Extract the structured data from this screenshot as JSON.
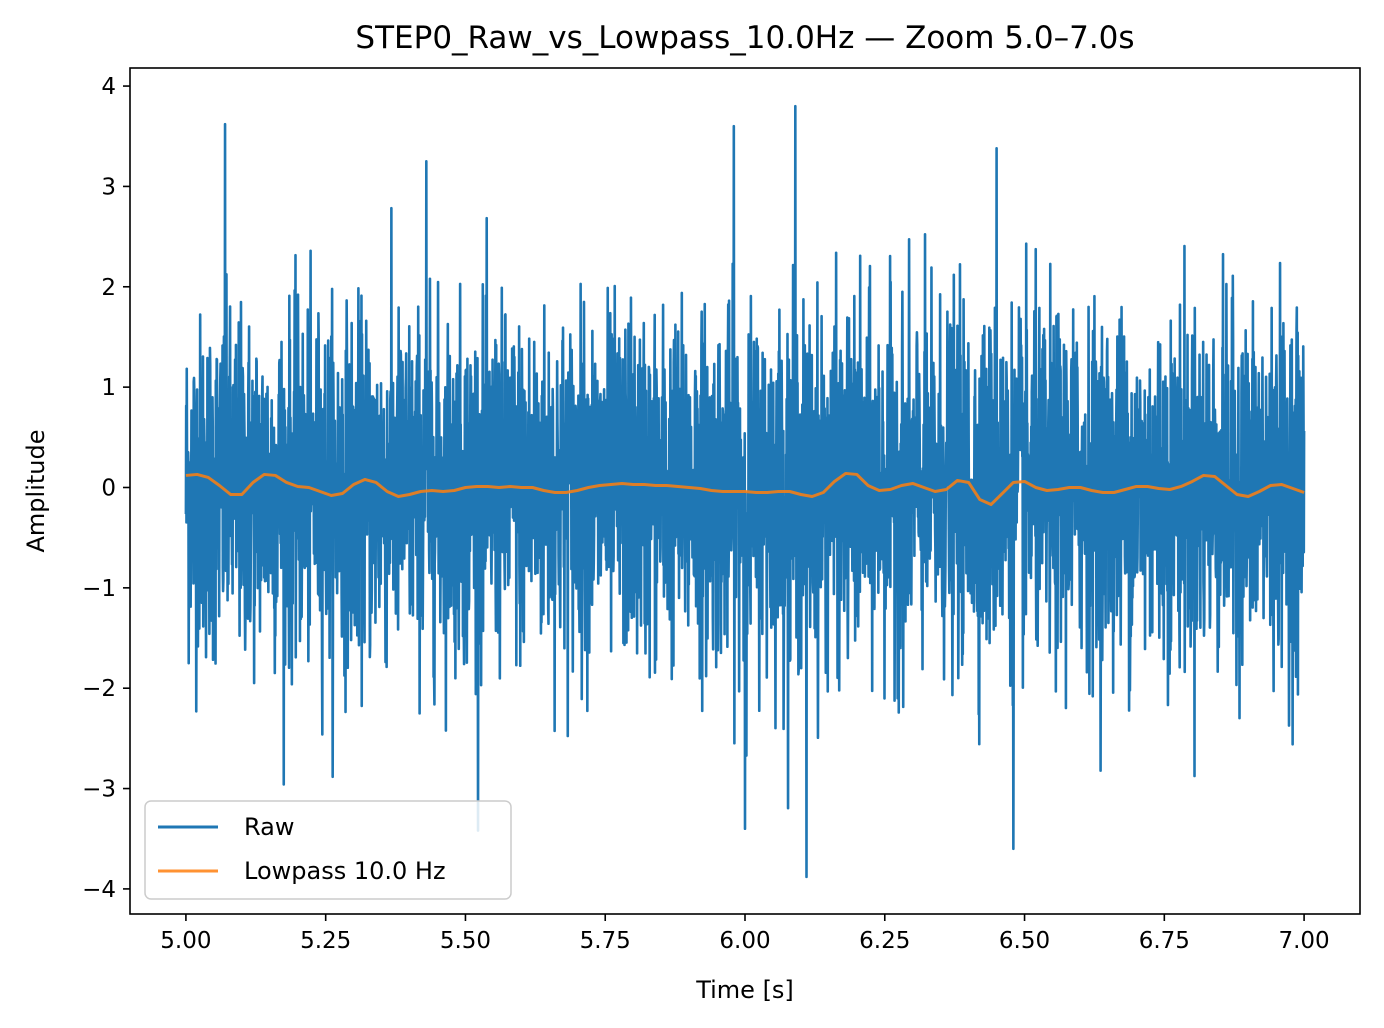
{
  "chart_data": {
    "type": "line",
    "title": "STEP0_Raw_vs_Lowpass_10.0Hz — Zoom 5.0–7.0s",
    "xlabel": "Time [s]",
    "ylabel": "Amplitude",
    "xlim": [
      4.9,
      7.1
    ],
    "ylim": [
      -4.25,
      4.18
    ],
    "grid": false,
    "legend_position": "lower-left",
    "xticks": [
      5.0,
      5.25,
      5.5,
      5.75,
      6.0,
      6.25,
      6.5,
      6.75,
      7.0
    ],
    "xtick_labels": [
      "5.00",
      "5.25",
      "5.50",
      "5.75",
      "6.00",
      "6.25",
      "6.50",
      "6.75",
      "7.00"
    ],
    "yticks": [
      -4,
      -3,
      -2,
      -1,
      0,
      1,
      2,
      3,
      4
    ],
    "ytick_labels": [
      "−4",
      "−3",
      "−2",
      "−1",
      "0",
      "1",
      "2",
      "3",
      "4"
    ],
    "series": [
      {
        "name": "Raw",
        "color": "#1f77b4",
        "x_range": [
          5.0,
          7.0
        ],
        "description_stats": {
          "approx_std": 0.85,
          "max": 3.8,
          "min": -3.88
        },
        "peaks": [
          {
            "x": 5.07,
            "y": 3.62
          },
          {
            "x": 6.09,
            "y": 3.8
          },
          {
            "x": 6.11,
            "y": -3.88
          },
          {
            "x": 6.0,
            "y": -3.4
          },
          {
            "x": 6.48,
            "y": -3.6
          },
          {
            "x": 6.45,
            "y": 3.38
          },
          {
            "x": 5.43,
            "y": 3.25
          },
          {
            "x": 5.98,
            "y": 3.6
          }
        ]
      },
      {
        "name": "Lowpass 10.0 Hz",
        "color": "#ff7f0e",
        "x": [
          5.0,
          5.02,
          5.04,
          5.06,
          5.08,
          5.1,
          5.12,
          5.14,
          5.16,
          5.18,
          5.2,
          5.22,
          5.24,
          5.26,
          5.28,
          5.3,
          5.32,
          5.34,
          5.36,
          5.38,
          5.4,
          5.42,
          5.44,
          5.46,
          5.48,
          5.5,
          5.52,
          5.54,
          5.56,
          5.58,
          5.6,
          5.62,
          5.64,
          5.66,
          5.68,
          5.7,
          5.72,
          5.74,
          5.76,
          5.78,
          5.8,
          5.82,
          5.84,
          5.86,
          5.88,
          5.9,
          5.92,
          5.94,
          5.96,
          5.98,
          6.0,
          6.02,
          6.04,
          6.06,
          6.08,
          6.1,
          6.12,
          6.14,
          6.16,
          6.18,
          6.2,
          6.22,
          6.24,
          6.26,
          6.28,
          6.3,
          6.32,
          6.34,
          6.36,
          6.38,
          6.4,
          6.42,
          6.44,
          6.46,
          6.48,
          6.5,
          6.52,
          6.54,
          6.56,
          6.58,
          6.6,
          6.62,
          6.64,
          6.66,
          6.68,
          6.7,
          6.72,
          6.74,
          6.76,
          6.78,
          6.8,
          6.82,
          6.84,
          6.86,
          6.88,
          6.9,
          6.92,
          6.94,
          6.96,
          6.98,
          7.0
        ],
        "y": [
          0.12,
          0.13,
          0.1,
          0.02,
          -0.07,
          -0.07,
          0.05,
          0.13,
          0.12,
          0.05,
          0.01,
          0.0,
          -0.04,
          -0.08,
          -0.06,
          0.03,
          0.08,
          0.05,
          -0.04,
          -0.09,
          -0.07,
          -0.04,
          -0.03,
          -0.04,
          -0.03,
          0.0,
          0.01,
          0.01,
          0.0,
          0.01,
          0.0,
          0.0,
          -0.03,
          -0.05,
          -0.05,
          -0.03,
          0.0,
          0.02,
          0.03,
          0.04,
          0.03,
          0.03,
          0.02,
          0.02,
          0.01,
          0.0,
          -0.01,
          -0.03,
          -0.04,
          -0.04,
          -0.04,
          -0.05,
          -0.05,
          -0.04,
          -0.04,
          -0.07,
          -0.09,
          -0.05,
          0.06,
          0.14,
          0.13,
          0.02,
          -0.03,
          -0.02,
          0.02,
          0.04,
          0.0,
          -0.04,
          -0.02,
          0.07,
          0.05,
          -0.12,
          -0.17,
          -0.06,
          0.05,
          0.06,
          0.0,
          -0.03,
          -0.02,
          0.0,
          0.0,
          -0.03,
          -0.05,
          -0.05,
          -0.02,
          0.01,
          0.01,
          -0.01,
          -0.02,
          0.01,
          0.06,
          0.12,
          0.11,
          0.02,
          -0.07,
          -0.09,
          -0.04,
          0.02,
          0.03,
          -0.01,
          -0.05
        ]
      }
    ]
  }
}
